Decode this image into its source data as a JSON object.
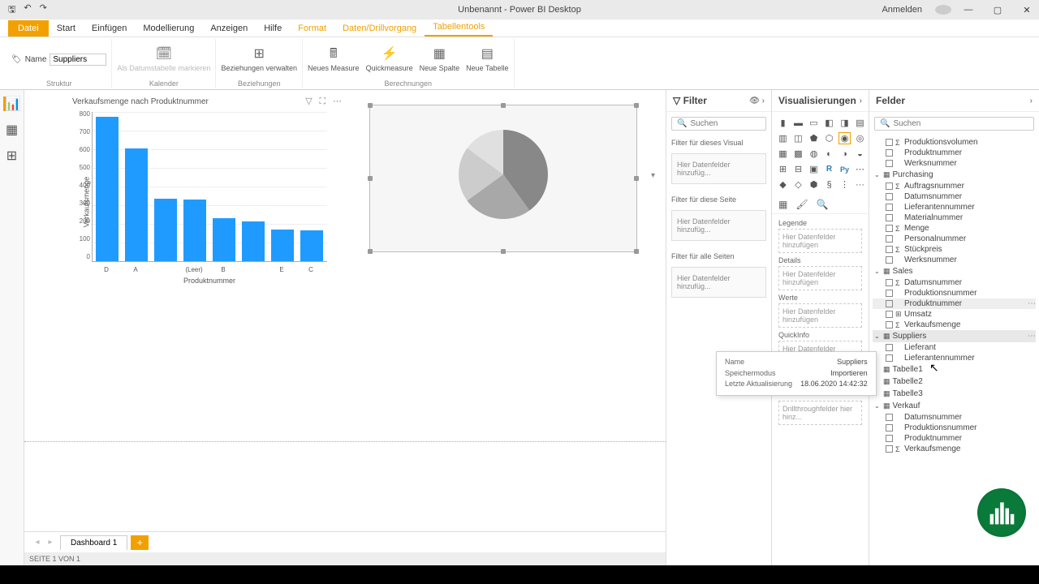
{
  "titlebar": {
    "title": "Unbenannt - Power BI Desktop",
    "signin": "Anmelden"
  },
  "ribbonTabs": {
    "file": "Datei",
    "start": "Start",
    "insert": "Einfügen",
    "model": "Modellierung",
    "view": "Anzeigen",
    "help": "Hilfe",
    "format": "Format",
    "drill": "Daten/Drillvorgang",
    "tabletools": "Tabellentools"
  },
  "ribbon": {
    "nameLabel": "Name",
    "nameValue": "Suppliers",
    "struktur": "Struktur",
    "kalender": "Kalender",
    "beziehungen": "Beziehungen",
    "berechnungen": "Berechnungen",
    "datumstabelle": "Als Datumstabelle markieren",
    "bezVerwalten": "Beziehungen verwalten",
    "neuesMeasure": "Neues Measure",
    "quickmeasure": "Quickmeasure",
    "neueSpalte": "Neue Spalte",
    "neueTabelle": "Neue Tabelle"
  },
  "barChart": {
    "title": "Verkaufsmenge nach Produktnummer",
    "yTitle": "Verkaufsmenge",
    "xTitle": "Produktnummer",
    "yMax": 800,
    "yStep": 100,
    "categories": [
      "D",
      "A",
      "(Leer)",
      "B",
      "E",
      "C"
    ],
    "values": [
      770,
      600,
      335,
      330,
      230,
      210,
      170,
      165
    ],
    "xLabels": [
      "D",
      "A",
      "",
      "(Leer)",
      "B",
      "",
      "E",
      "C"
    ],
    "barColor": "#1f9bff"
  },
  "pie": {
    "slices": [
      {
        "value": 40,
        "color": "#888888"
      },
      {
        "value": 25,
        "color": "#a8a8a8"
      },
      {
        "value": 20,
        "color": "#cccccc"
      },
      {
        "value": 15,
        "color": "#e0e0e0"
      }
    ]
  },
  "filterPane": {
    "title": "Filter",
    "search": "Suchen",
    "visual": "Filter für dieses Visual",
    "page": "Filter für diese Seite",
    "all": "Filter für alle Seiten",
    "drop": "Hier Datenfelder hinzufüg..."
  },
  "vizPane": {
    "title": "Visualisierungen",
    "legend": "Legende",
    "details": "Details",
    "werte": "Werte",
    "quickinfo": "QuickInfo",
    "drop": "Hier Datenfelder hinzufügen",
    "keepFilters": "Alle Filter beibehalten",
    "ein": "Ein",
    "drillDrop": "Drillthroughfelder hier hinz..."
  },
  "fieldsPane": {
    "title": "Felder",
    "search": "Suchen",
    "tables": [
      {
        "name": "?",
        "expanded": true,
        "fields": [
          {
            "name": "Produktionsvolumen",
            "sigma": true
          },
          {
            "name": "Produktnummer",
            "sigma": false
          },
          {
            "name": "Werksnummer",
            "sigma": false
          }
        ]
      },
      {
        "name": "Purchasing",
        "expanded": true,
        "fields": [
          {
            "name": "Auftragsnummer",
            "sigma": true
          },
          {
            "name": "Datumsnummer",
            "sigma": false
          },
          {
            "name": "Lieferantennummer",
            "sigma": false
          },
          {
            "name": "Materialnummer",
            "sigma": false
          },
          {
            "name": "Menge",
            "sigma": true
          },
          {
            "name": "Personalnummer",
            "sigma": false
          },
          {
            "name": "Stückpreis",
            "sigma": true
          },
          {
            "name": "Werksnummer",
            "sigma": false
          }
        ]
      },
      {
        "name": "Sales",
        "expanded": true,
        "fields": [
          {
            "name": "Datumsnummer",
            "sigma": true
          },
          {
            "name": "Produktionsnummer",
            "sigma": false
          },
          {
            "name": "Produktnummer",
            "sigma": false,
            "highlight": true
          },
          {
            "name": "Umsatz",
            "sigma": false,
            "calc": true
          },
          {
            "name": "Verkaufsmenge",
            "sigma": true
          }
        ]
      },
      {
        "name": "Suppliers",
        "expanded": true,
        "selected": true,
        "fields": [
          {
            "name": "Lieferant",
            "sigma": false
          },
          {
            "name": "Lieferantennummer",
            "sigma": false
          }
        ]
      },
      {
        "name": "Tabelle1",
        "expanded": false,
        "fields": []
      },
      {
        "name": "Tabelle2",
        "expanded": false,
        "fields": []
      },
      {
        "name": "Tabelle3",
        "expanded": false,
        "fields": []
      },
      {
        "name": "Verkauf",
        "expanded": true,
        "fields": [
          {
            "name": "Datumsnummer",
            "sigma": false
          },
          {
            "name": "Produktionsnummer",
            "sigma": false
          },
          {
            "name": "Produktnummer",
            "sigma": false
          },
          {
            "name": "Verkaufsmenge",
            "sigma": true
          }
        ]
      }
    ]
  },
  "tooltip": {
    "name_l": "Name",
    "name_v": "Suppliers",
    "mode_l": "Speichermodus",
    "mode_v": "Importieren",
    "upd_l": "Letzte Aktualisierung",
    "upd_v": "18.06.2020 14:42:32"
  },
  "pageTab": "Dashboard 1",
  "status": "SEITE 1 VON 1"
}
